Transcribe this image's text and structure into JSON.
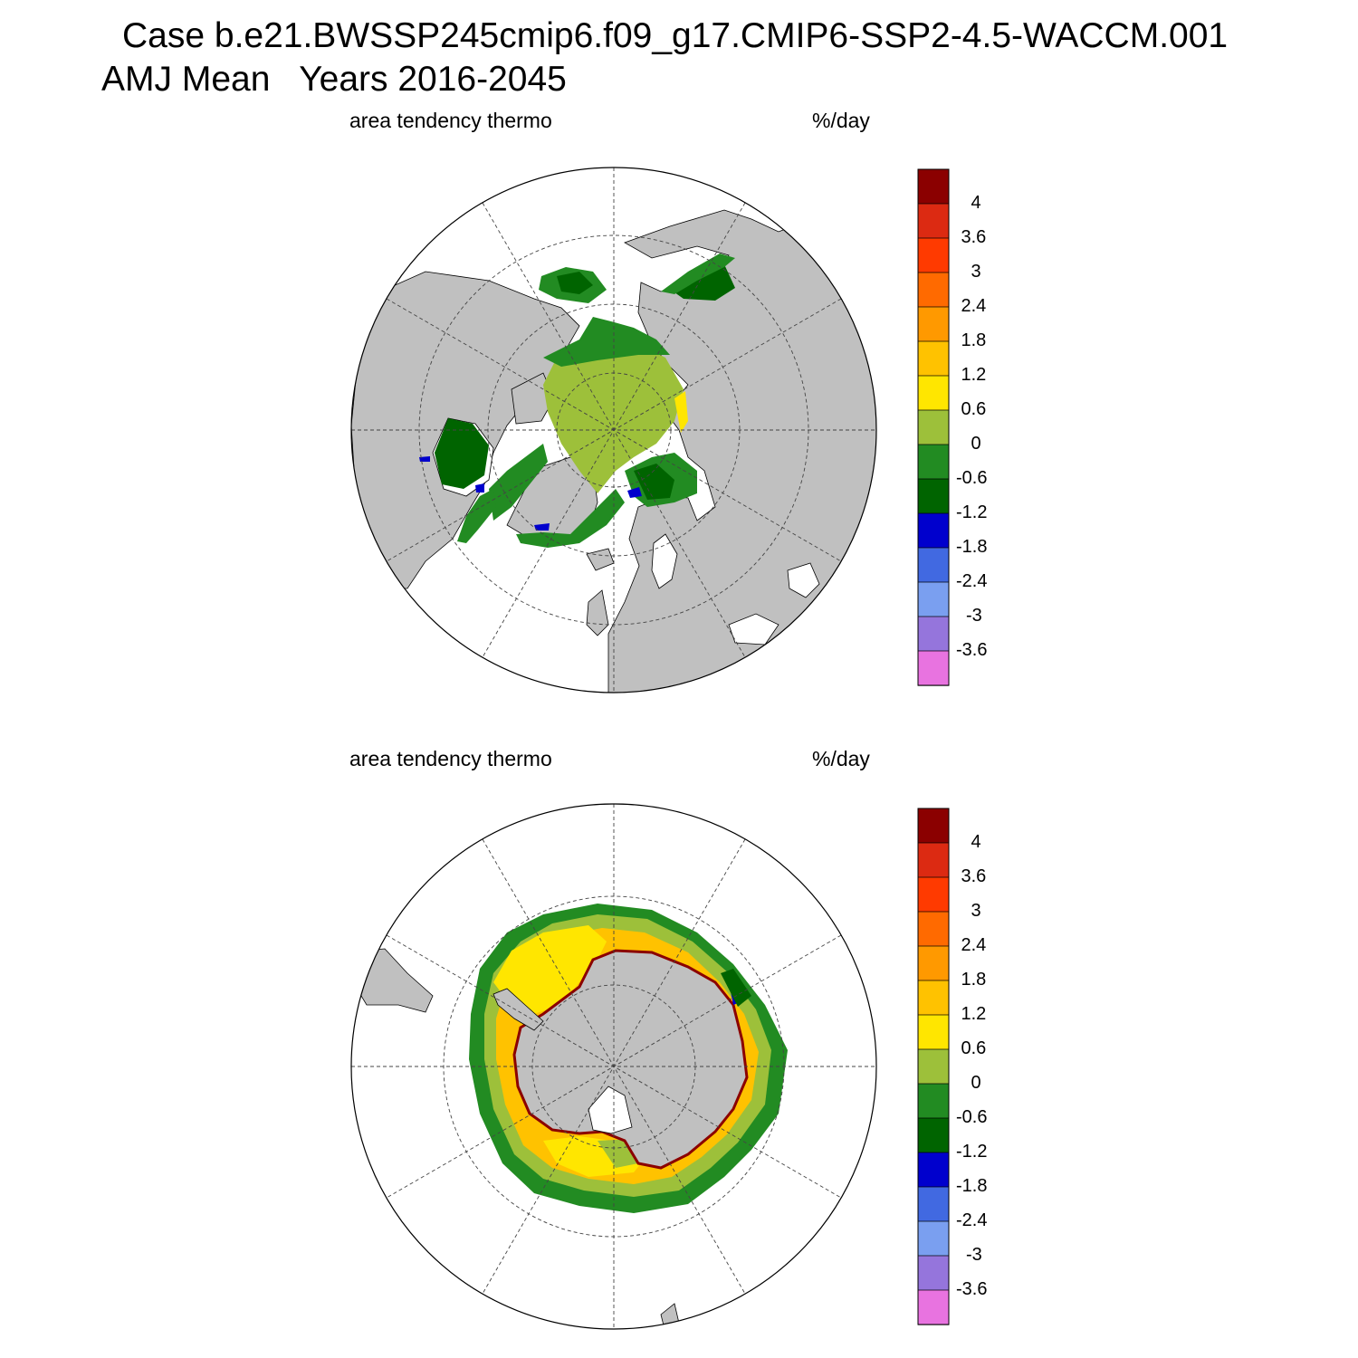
{
  "title_line1": "Case b.e21.BWSSP245cmip6.f09_g17.CMIP6-SSP2-4.5-WACCM.001",
  "title_line2": "AMJ Mean   Years 2016-2045",
  "panels": [
    {
      "hemisphere": "north",
      "left_label": "area tendency thermo",
      "right_label": "%/day"
    },
    {
      "hemisphere": "south",
      "left_label": "area tendency thermo",
      "right_label": "%/day"
    }
  ],
  "colorbar": {
    "labels": [
      "4",
      "3.6",
      "3",
      "2.4",
      "1.8",
      "1.2",
      "0.6",
      "0",
      "-0.6",
      "-1.2",
      "-1.8",
      "-2.4",
      "-3",
      "-3.6"
    ],
    "colors": [
      "#8b0000",
      "#dc2a12",
      "#ff3a00",
      "#ff6a00",
      "#ff9900",
      "#ffc200",
      "#ffe600",
      "#9dc03a",
      "#228b22",
      "#006400",
      "#0000cd",
      "#4169e1",
      "#7a9ff0",
      "#9575dc",
      "#e873e0"
    ]
  },
  "colors": {
    "land": "#c0c0c0",
    "ocean": "#ffffff"
  }
}
